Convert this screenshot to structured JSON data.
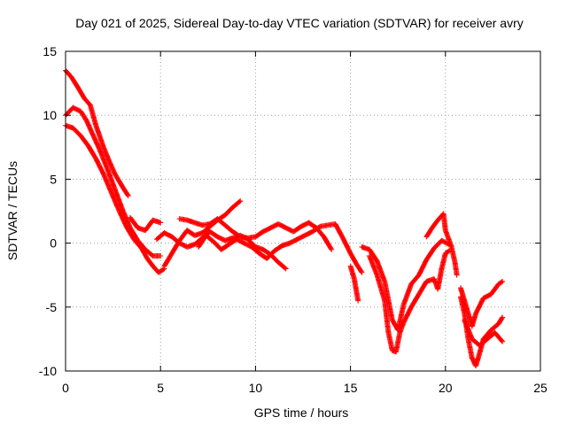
{
  "chart_data": {
    "type": "scatter",
    "title": "Day 021 of 2025, Sidereal Day-to-day VTEC variation (SDTVAR) for receiver avry",
    "xlabel": "GPS time / hours",
    "ylabel": "SDTVAR / TECUs",
    "xlim": [
      0,
      25
    ],
    "ylim": [
      -10,
      15
    ],
    "xticks": [
      0,
      5,
      10,
      15,
      20,
      25
    ],
    "yticks": [
      -10,
      -5,
      0,
      5,
      10,
      15
    ],
    "grid": true,
    "marker": "+",
    "color": "#ff0000",
    "tracks": [
      {
        "name": "track-1",
        "points": [
          [
            0.0,
            13.5
          ],
          [
            0.3,
            13.0
          ],
          [
            0.6,
            12.3
          ],
          [
            0.8,
            11.8
          ],
          [
            1.0,
            11.3
          ],
          [
            1.3,
            10.8
          ],
          [
            1.6,
            9.2
          ],
          [
            2.0,
            7.5
          ],
          [
            2.3,
            6.4
          ],
          [
            2.6,
            5.4
          ],
          [
            3.0,
            4.4
          ],
          [
            3.3,
            3.7
          ]
        ]
      },
      {
        "name": "track-2",
        "points": [
          [
            0.0,
            10.0
          ],
          [
            0.4,
            10.6
          ],
          [
            0.8,
            10.3
          ],
          [
            1.1,
            9.6
          ],
          [
            1.4,
            8.6
          ],
          [
            1.8,
            7.3
          ],
          [
            2.2,
            5.8
          ],
          [
            2.6,
            4.2
          ],
          [
            3.0,
            2.6
          ],
          [
            3.4,
            1.2
          ],
          [
            3.8,
            0.2
          ],
          [
            4.2,
            -0.5
          ],
          [
            4.6,
            -1.0
          ],
          [
            5.0,
            -1.0
          ]
        ]
      },
      {
        "name": "track-3",
        "points": [
          [
            0.0,
            9.2
          ],
          [
            0.4,
            9.0
          ],
          [
            0.8,
            8.4
          ],
          [
            1.2,
            7.6
          ],
          [
            1.6,
            6.6
          ],
          [
            2.0,
            5.4
          ],
          [
            2.4,
            4.0
          ],
          [
            2.8,
            2.6
          ],
          [
            3.2,
            1.3
          ],
          [
            3.6,
            0.3
          ],
          [
            4.0,
            -0.4
          ],
          [
            4.3,
            -1.2
          ],
          [
            4.6,
            -1.8
          ],
          [
            4.9,
            -2.3
          ],
          [
            5.2,
            -2.0
          ]
        ]
      },
      {
        "name": "track-4",
        "points": [
          [
            3.4,
            2.0
          ],
          [
            3.8,
            1.2
          ],
          [
            4.2,
            1.0
          ],
          [
            4.6,
            1.8
          ],
          [
            5.0,
            1.6
          ]
        ]
      },
      {
        "name": "track-5",
        "points": [
          [
            5.2,
            -1.8
          ],
          [
            5.6,
            -0.8
          ],
          [
            6.0,
            0.2
          ],
          [
            6.4,
            1.0
          ],
          [
            6.8,
            0.6
          ],
          [
            7.2,
            0.8
          ],
          [
            7.6,
            1.3
          ],
          [
            8.0,
            1.8
          ],
          [
            8.4,
            2.2
          ],
          [
            8.8,
            2.8
          ],
          [
            9.2,
            3.3
          ]
        ]
      },
      {
        "name": "track-6",
        "points": [
          [
            4.8,
            0.3
          ],
          [
            5.2,
            0.8
          ],
          [
            5.6,
            0.5
          ],
          [
            6.0,
            0.0
          ],
          [
            6.4,
            -0.3
          ],
          [
            6.8,
            -0.1
          ],
          [
            7.2,
            0.4
          ],
          [
            7.6,
            0.9
          ],
          [
            8.0,
            0.5
          ],
          [
            8.4,
            0.2
          ],
          [
            8.8,
            0.4
          ],
          [
            9.2,
            0.6
          ],
          [
            9.6,
            0.3
          ],
          [
            10.0,
            -0.3
          ],
          [
            10.4,
            -0.5
          ],
          [
            10.8,
            -0.9
          ],
          [
            11.2,
            -1.5
          ],
          [
            11.6,
            -2.0
          ]
        ]
      },
      {
        "name": "track-7",
        "points": [
          [
            6.0,
            1.9
          ],
          [
            6.4,
            1.8
          ],
          [
            6.8,
            1.6
          ],
          [
            7.2,
            1.4
          ],
          [
            7.6,
            1.5
          ],
          [
            8.0,
            1.9
          ],
          [
            8.4,
            1.4
          ],
          [
            8.8,
            0.9
          ],
          [
            9.2,
            0.5
          ],
          [
            9.6,
            0.4
          ],
          [
            10.0,
            0.5
          ],
          [
            10.4,
            0.9
          ],
          [
            10.8,
            1.2
          ],
          [
            11.2,
            1.5
          ],
          [
            11.6,
            1.2
          ],
          [
            12.0,
            0.9
          ],
          [
            12.4,
            1.3
          ],
          [
            12.8,
            1.6
          ],
          [
            13.2,
            1.2
          ],
          [
            13.6,
            0.5
          ],
          [
            14.0,
            -0.5
          ]
        ]
      },
      {
        "name": "track-8",
        "points": [
          [
            7.0,
            -0.3
          ],
          [
            7.4,
            0.6
          ],
          [
            7.8,
            0.1
          ],
          [
            8.2,
            -0.5
          ],
          [
            8.6,
            -0.1
          ],
          [
            9.0,
            0.3
          ],
          [
            9.4,
            0.0
          ],
          [
            9.8,
            -0.3
          ],
          [
            10.2,
            -0.8
          ],
          [
            10.6,
            -1.2
          ],
          [
            11.0,
            -0.6
          ],
          [
            11.4,
            -0.2
          ],
          [
            11.8,
            0.0
          ],
          [
            12.2,
            0.3
          ],
          [
            12.6,
            0.6
          ],
          [
            13.0,
            0.9
          ],
          [
            13.4,
            1.3
          ],
          [
            13.8,
            1.4
          ],
          [
            14.2,
            1.5
          ],
          [
            14.6,
            0.4
          ],
          [
            15.0,
            -0.8
          ],
          [
            15.3,
            -1.6
          ],
          [
            15.6,
            -2.3
          ]
        ]
      },
      {
        "name": "track-9",
        "points": [
          [
            15.0,
            -1.8
          ],
          [
            15.2,
            -2.8
          ],
          [
            15.4,
            -4.5
          ]
        ]
      },
      {
        "name": "track-10",
        "points": [
          [
            15.6,
            -0.3
          ],
          [
            16.0,
            -0.5
          ],
          [
            16.4,
            -1.4
          ],
          [
            16.8,
            -3.0
          ],
          [
            17.2,
            -6.0
          ],
          [
            17.5,
            -6.8
          ],
          [
            17.8,
            -4.8
          ],
          [
            18.2,
            -3.2
          ],
          [
            18.6,
            -2.5
          ],
          [
            19.0,
            -1.3
          ],
          [
            19.4,
            -0.4
          ],
          [
            19.8,
            0.2
          ],
          [
            20.2,
            -0.1
          ]
        ]
      },
      {
        "name": "track-11",
        "points": [
          [
            16.0,
            -1.0
          ],
          [
            16.4,
            -2.5
          ],
          [
            16.8,
            -4.5
          ],
          [
            17.0,
            -7.0
          ],
          [
            17.2,
            -8.4
          ],
          [
            17.4,
            -8.5
          ],
          [
            17.6,
            -7.0
          ],
          [
            17.8,
            -6.2
          ],
          [
            18.2,
            -5.0
          ],
          [
            18.6,
            -4.0
          ],
          [
            19.0,
            -3.0
          ],
          [
            19.4,
            -2.8
          ],
          [
            19.6,
            -3.6
          ],
          [
            19.8,
            -2.0
          ],
          [
            20.0,
            -0.8
          ],
          [
            20.2,
            -0.6
          ]
        ]
      },
      {
        "name": "track-12",
        "points": [
          [
            19.0,
            0.5
          ],
          [
            19.3,
            1.2
          ],
          [
            19.6,
            1.8
          ],
          [
            19.9,
            2.3
          ],
          [
            20.0,
            1.0
          ],
          [
            20.3,
            -0.2
          ],
          [
            20.5,
            -1.5
          ],
          [
            20.6,
            -2.5
          ]
        ]
      },
      {
        "name": "track-13",
        "points": [
          [
            20.8,
            -4.2
          ],
          [
            21.0,
            -5.5
          ],
          [
            21.2,
            -7.5
          ],
          [
            21.4,
            -9.0
          ],
          [
            21.6,
            -9.6
          ],
          [
            21.8,
            -8.6
          ],
          [
            22.0,
            -7.5
          ],
          [
            22.4,
            -6.8
          ],
          [
            22.8,
            -6.3
          ],
          [
            23.0,
            -5.8
          ]
        ]
      },
      {
        "name": "track-14",
        "points": [
          [
            20.8,
            -3.5
          ],
          [
            21.0,
            -4.5
          ],
          [
            21.2,
            -5.5
          ],
          [
            21.4,
            -6.5
          ],
          [
            21.6,
            -5.5
          ],
          [
            22.0,
            -4.3
          ],
          [
            22.4,
            -4.0
          ],
          [
            22.8,
            -3.2
          ],
          [
            23.0,
            -3.0
          ]
        ]
      },
      {
        "name": "track-15",
        "points": [
          [
            21.0,
            -6.0
          ],
          [
            21.4,
            -7.5
          ],
          [
            21.8,
            -8.0
          ],
          [
            22.2,
            -7.5
          ],
          [
            22.6,
            -7.0
          ],
          [
            23.0,
            -7.7
          ]
        ]
      }
    ]
  }
}
